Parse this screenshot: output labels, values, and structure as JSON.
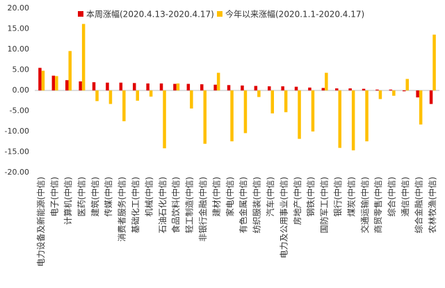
{
  "chart_data": {
    "type": "bar",
    "categories": [
      "电力设备及新能源(中信)",
      "电子(中信)",
      "计算机(中信)",
      "医药(中信)",
      "建筑(中信)",
      "传媒(中信)",
      "消费者服务(中信)",
      "基础化工(中信)",
      "机械(中信)",
      "石油石化(中信)",
      "食品饮料(中信)",
      "轻工制造(中信)",
      "非银行金融(中信)",
      "建材(中信)",
      "家电(中信)",
      "有色金属(中信)",
      "纺织服装(中信)",
      "汽车(中信)",
      "电力及公用事业(中信)",
      "房地产(中信)",
      "钢铁(中信)",
      "国防军工(中信)",
      "银行(中信)",
      "煤炭(中信)",
      "交通运输(中信)",
      "商贸零售(中信)",
      "综合(中信)",
      "通信(中信)",
      "综合金融(中信)",
      "农林牧渔(中信)"
    ],
    "series": [
      {
        "name": "本周涨幅(2020.4.13-2020.4.17)",
        "color": "#e00000",
        "values": [
          5.5,
          3.6,
          2.5,
          2.2,
          2.0,
          1.9,
          1.9,
          1.8,
          1.7,
          1.7,
          1.6,
          1.6,
          1.5,
          1.4,
          1.3,
          1.2,
          1.1,
          1.0,
          1.0,
          0.9,
          0.7,
          0.6,
          0.5,
          0.5,
          0.4,
          0.2,
          0.2,
          -0.2,
          -1.7,
          -3.3
        ]
      },
      {
        "name": "今年以来涨幅(2020.1.1-2020.4.17)",
        "color": "#ffc000",
        "values": [
          4.8,
          3.5,
          9.6,
          16.2,
          -2.6,
          -3.3,
          -7.5,
          -2.5,
          -1.5,
          -14.1,
          1.7,
          -4.4,
          -13.0,
          4.3,
          -12.4,
          -10.4,
          -1.6,
          -5.6,
          -5.3,
          -11.8,
          -10.0,
          4.3,
          -14.0,
          -14.6,
          -12.4,
          -2.1,
          -1.3,
          2.8,
          -8.3,
          13.6
        ]
      }
    ],
    "ylim": [
      -20,
      20
    ],
    "yticks": [
      {
        "value": 20,
        "label": "20.00"
      },
      {
        "value": 15,
        "label": "15.00"
      },
      {
        "value": 10,
        "label": "10.00"
      },
      {
        "value": 5,
        "label": "5.00"
      },
      {
        "value": 0,
        "label": "0.00"
      },
      {
        "value": -5,
        "label": "-5.00"
      },
      {
        "value": -10,
        "label": "-10.00"
      },
      {
        "value": -15,
        "label": "-15.00"
      },
      {
        "value": -20,
        "label": "-20.00"
      }
    ],
    "grid": false
  }
}
